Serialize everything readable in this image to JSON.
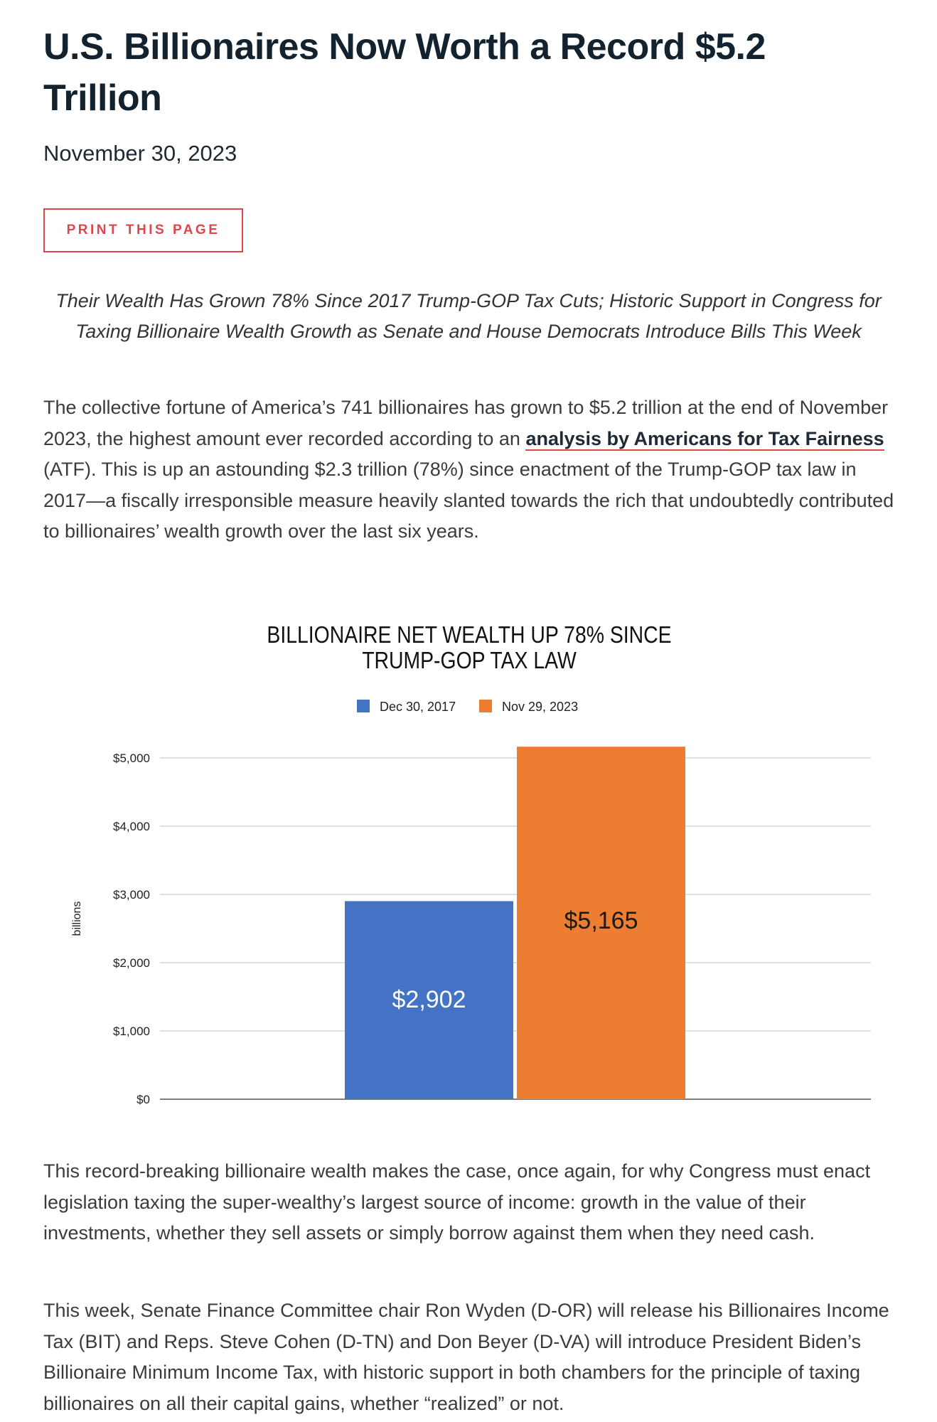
{
  "article": {
    "title": "U.S. Billionaires Now Worth a Record $5.2 Trillion",
    "date": "November 30, 2023",
    "print_label": "PRINT THIS PAGE",
    "subtitle": "Their Wealth Has Grown 78% Since 2017 Trump-GOP Tax Cuts; Historic Support in Congress for Taxing Billionaire Wealth Growth as Senate and House Democrats Introduce Bills This Week",
    "p1_before": "The collective fortune of America’s 741 billionaires has grown to $5.2 trillion at the end of November 2023, the highest amount ever recorded according to an ",
    "p1_link": "analysis by Americans for Tax Fairness",
    "p1_after": " (ATF). This is up an astounding $2.3 trillion (78%) since enactment of the Trump-GOP tax law in 2017—a fiscally irresponsible measure heavily slanted towards the rich that undoubtedly contributed to billionaires’ wealth growth over the last six years.",
    "p2": "This record-breaking billionaire wealth makes the case, once again, for why Congress must enact legislation taxing the super-wealthy’s largest source of income: growth in the value of their investments, whether they sell assets or simply borrow against them when they need cash.",
    "p3": "This week, Senate Finance Committee chair Ron Wyden (D-OR) will release his Billionaires Income Tax (BIT) and Reps. Steve Cohen (D-TN) and Don Beyer (D-VA) will introduce President Biden’s Billionaire Minimum Income Tax, with historic support in both chambers for the principle of taxing billionaires on all their capital gains, whether “realized” or not."
  },
  "colors": {
    "accent": "#e0454a",
    "series_2017": "#4472c4",
    "series_2023": "#ed7d31"
  },
  "chart_data": {
    "type": "bar",
    "title_line1": "BILLIONAIRE NET WEALTH UP 78% SINCE",
    "title_line2": "TRUMP-GOP TAX LAW",
    "ylabel": "billions",
    "ylim": [
      0,
      5000
    ],
    "yticks": [
      0,
      1000,
      2000,
      3000,
      4000,
      5000
    ],
    "ytick_labels": [
      "$0",
      "$1,000",
      "$2,000",
      "$3,000",
      "$4,000",
      "$5,000"
    ],
    "grid": true,
    "legend_position": "top",
    "series": [
      {
        "name": "Dec 30, 2017",
        "value": 2902,
        "label": "$2,902",
        "color": "#4472c4",
        "label_color": "#ffffff"
      },
      {
        "name": "Nov 29, 2023",
        "value": 5165,
        "label": "$5,165",
        "color": "#ed7d31",
        "label_color": "#1a1a1a"
      }
    ]
  }
}
